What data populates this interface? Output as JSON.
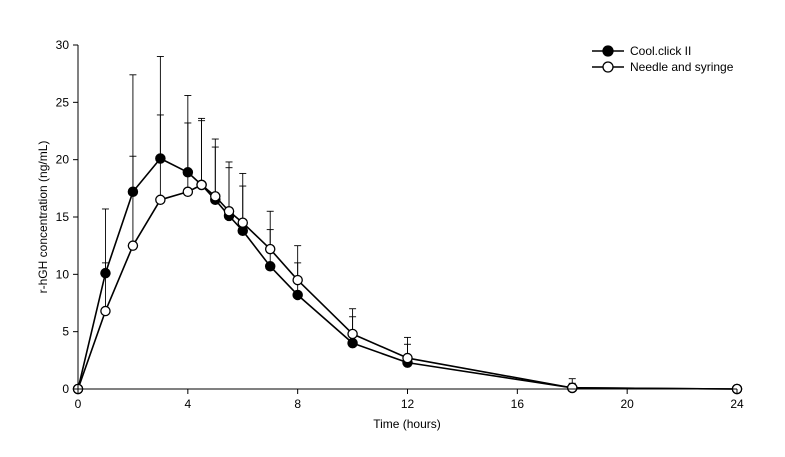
{
  "chart_data": {
    "type": "line",
    "xlabel": "Time (hours)",
    "ylabel": "r-hGH concentration (ng/mL)",
    "xlim": [
      0,
      24
    ],
    "ylim": [
      0,
      30
    ],
    "xticks": [
      0,
      4,
      8,
      12,
      16,
      20,
      24
    ],
    "yticks": [
      0,
      5,
      10,
      15,
      20,
      25,
      30
    ],
    "grid": false,
    "legend_position": "top-right",
    "colors": {
      "line": "#000000",
      "filled_marker": "#000000",
      "open_marker": "#ffffff"
    },
    "series": [
      {
        "name": "Cool.click II",
        "marker": "filled",
        "x": [
          0,
          1,
          2,
          3,
          4,
          4.5,
          5,
          5.5,
          6,
          7,
          8,
          10,
          12,
          18,
          24
        ],
        "y": [
          0,
          10.1,
          17.2,
          20.1,
          18.9,
          17.8,
          16.5,
          15.1,
          13.8,
          10.7,
          8.2,
          4.0,
          2.3,
          0.1,
          0.0
        ],
        "error_upper": [
          0,
          15.7,
          27.4,
          29.0,
          25.6,
          23.6,
          21.8,
          19.8,
          18.8,
          15.5,
          12.5,
          6.3,
          3.9,
          0.9,
          0
        ]
      },
      {
        "name": "Needle and syringe",
        "marker": "open",
        "x": [
          0,
          1,
          2,
          3,
          4,
          4.5,
          5,
          5.5,
          6,
          7,
          8,
          10,
          12,
          18,
          24
        ],
        "y": [
          0,
          6.8,
          12.5,
          16.5,
          17.2,
          17.8,
          16.8,
          15.5,
          14.5,
          12.2,
          9.5,
          4.8,
          2.7,
          0.1,
          0.0
        ],
        "error_upper": [
          0,
          11.0,
          20.3,
          23.9,
          23.2,
          23.4,
          21.1,
          19.3,
          17.7,
          13.9,
          11.0,
          7.0,
          4.5,
          0.5,
          0
        ]
      }
    ]
  }
}
